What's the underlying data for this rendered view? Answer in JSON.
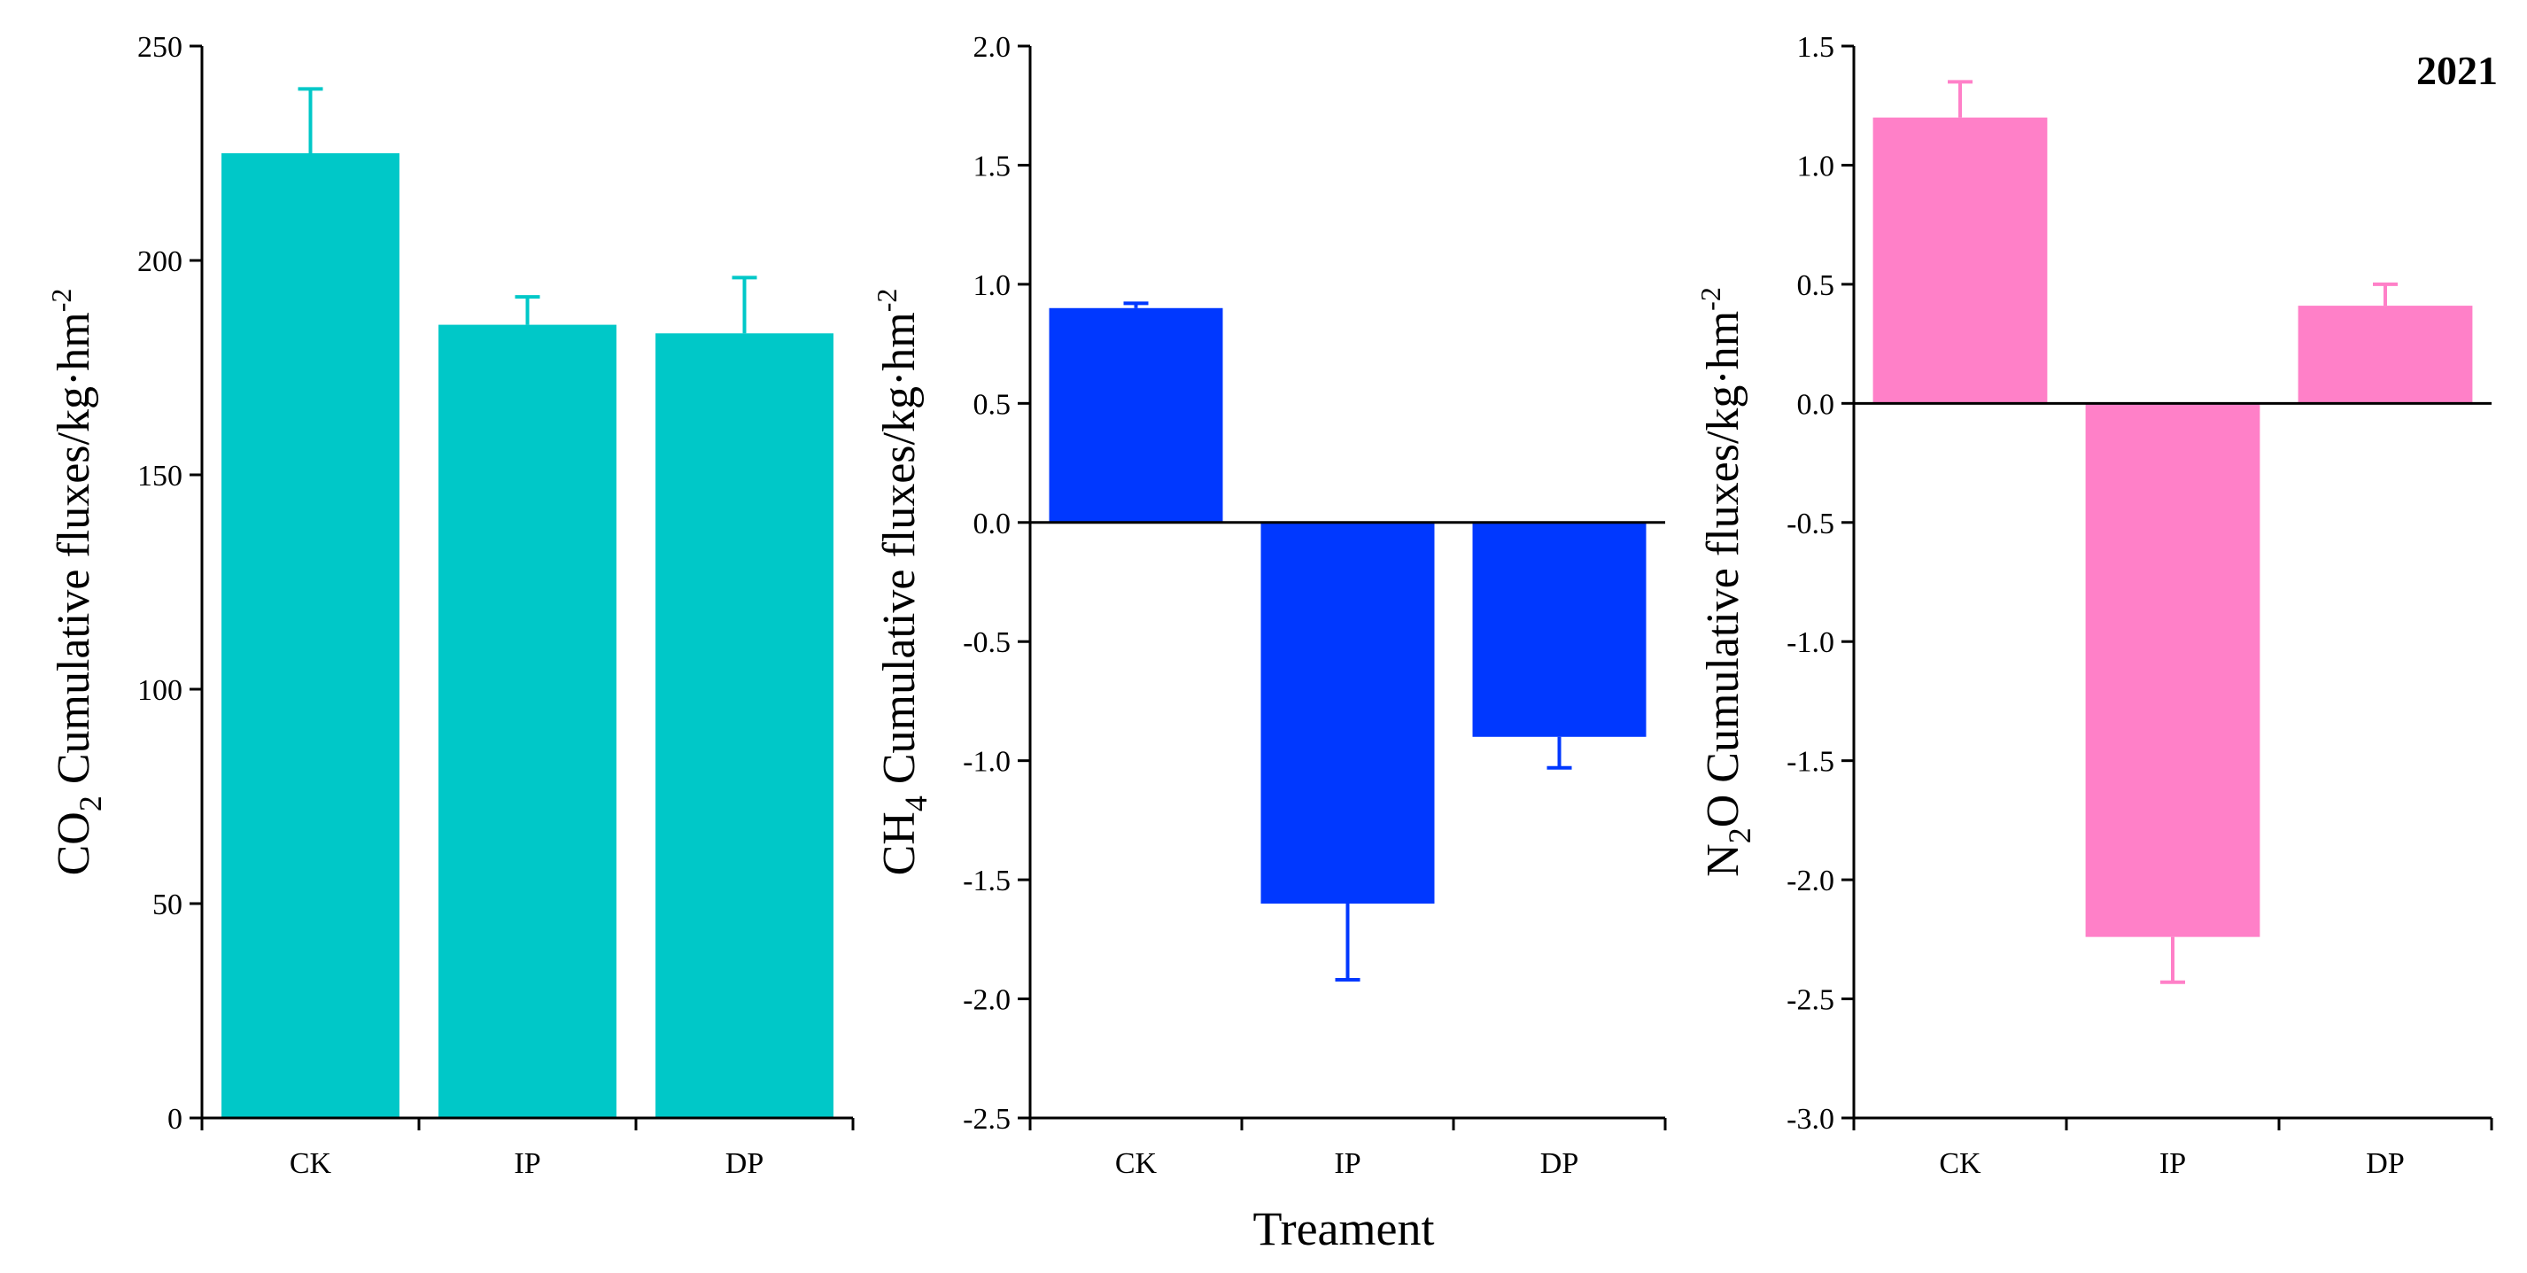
{
  "year_label": "2021",
  "shared_xlabel": "Treament",
  "chart_data": [
    {
      "type": "bar",
      "gas": "CO2",
      "ylabel_main": "CO",
      "ylabel_sub": "2",
      "ylabel_rest": " Cumulative fluxes/kg·hm",
      "ylabel_sup": "-2",
      "categories": [
        "CK",
        "IP",
        "DP"
      ],
      "values": [
        225,
        185,
        183
      ],
      "errors": [
        15,
        6.5,
        13
      ],
      "ylim": [
        0,
        250
      ],
      "yticks": [
        0,
        50,
        100,
        150,
        200,
        250
      ],
      "ytick_labels": [
        "0",
        "50",
        "100",
        "150",
        "200",
        "250"
      ],
      "color": "#00c8c8"
    },
    {
      "type": "bar",
      "gas": "CH4",
      "ylabel_main": "CH",
      "ylabel_sub": "4",
      "ylabel_rest": " Cumulative fluxes/kg·hm",
      "ylabel_sup": "-2",
      "categories": [
        "CK",
        "IP",
        "DP"
      ],
      "values": [
        0.9,
        -1.6,
        -0.9
      ],
      "errors": [
        0.02,
        0.32,
        0.13
      ],
      "ylim": [
        -2.5,
        2.0
      ],
      "yticks": [
        -2.5,
        -2.0,
        -1.5,
        -1.0,
        -0.5,
        0.0,
        0.5,
        1.0,
        1.5,
        2.0
      ],
      "ytick_labels": [
        "-2.5",
        "-2.0",
        "-1.5",
        "-1.0",
        "-0.5",
        "0.0",
        "0.5",
        "1.0",
        "1.5",
        "2.0"
      ],
      "color": "#0038ff"
    },
    {
      "type": "bar",
      "gas": "N2O",
      "ylabel_main": "N",
      "ylabel_sub": "2",
      "ylabel_rest": "O Cumulative fluxes/kg·hm",
      "ylabel_sup": "-2",
      "categories": [
        "CK",
        "IP",
        "DP"
      ],
      "values": [
        1.2,
        -2.24,
        0.41
      ],
      "errors": [
        0.15,
        0.19,
        0.09
      ],
      "ylim": [
        -3.0,
        1.5
      ],
      "yticks": [
        -3.0,
        -2.5,
        -2.0,
        -1.5,
        -1.0,
        -0.5,
        0.0,
        0.5,
        1.0,
        1.5
      ],
      "ytick_labels": [
        "-3.0",
        "-2.5",
        "-2.0",
        "-1.5",
        "-1.0",
        "-0.5",
        "0.0",
        "0.5",
        "1.0",
        "1.5"
      ],
      "color": "#ff80c8"
    }
  ]
}
